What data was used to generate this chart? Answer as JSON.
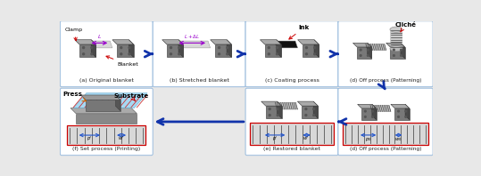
{
  "bg_color": "#e8e8e8",
  "panel_bg": "#ffffff",
  "panel_border": "#99bbdd",
  "arrow_color": "#1133aa",
  "red_color": "#cc0000",
  "orange_color": "#cc6600",
  "panels": [
    {
      "id": "a",
      "label": "(a) Original blanket"
    },
    {
      "id": "b",
      "label": "(b) Stretched blanket"
    },
    {
      "id": "c",
      "label": "(c) Coating process"
    },
    {
      "id": "d",
      "label": "(d) Off process (Patterning)"
    },
    {
      "id": "e",
      "label": "(e) Restored blanket"
    },
    {
      "id": "f",
      "label": "(f) Set process (Printing)"
    }
  ],
  "device_dark": "#4a4a4a",
  "device_mid": "#787878",
  "device_light": "#aaaaaa",
  "device_top": "#c0c0c0",
  "blanket_gray": "#d0d0d0",
  "blanket_dark": "#222222",
  "cliche_stripe": "#555555",
  "substrate_blue": "#88ccee",
  "substrate_blue2": "#aaddff",
  "inset_bg": "#e0e0e0",
  "inset_border": "#cc0000",
  "pattern_arrow": "#2255cc"
}
